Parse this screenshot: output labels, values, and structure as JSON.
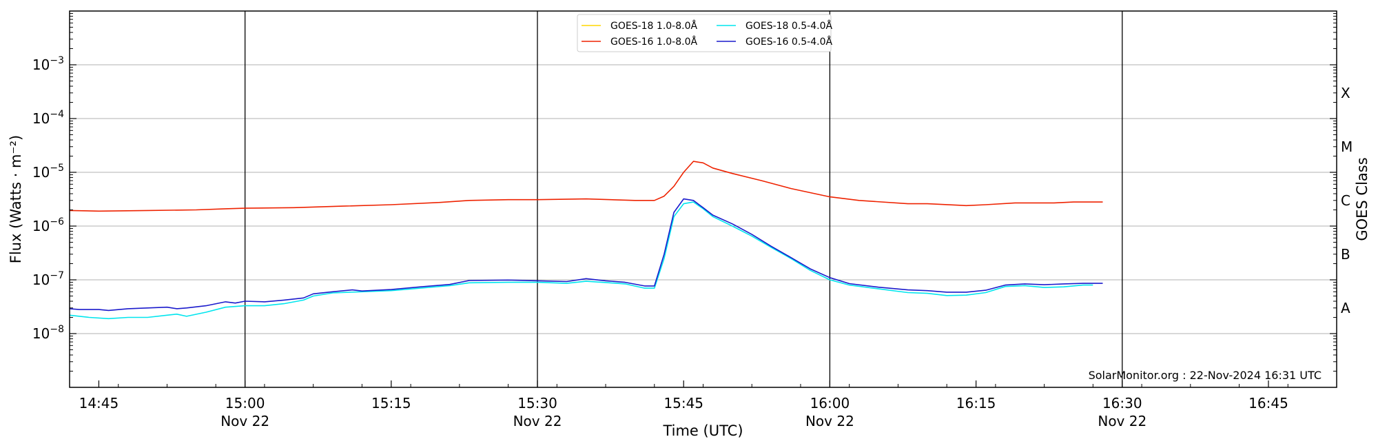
{
  "chart_data": {
    "type": "line",
    "xlabel": "Time (UTC)",
    "ylabel": "Flux (Watts · m⁻²)",
    "y2label": "GOES Class",
    "credit": "SolarMonitor.org : 22-Nov-2024 16:31 UTC",
    "y_scale": "log",
    "xlim": [
      "14:42",
      "16:52"
    ],
    "ylim": [
      1e-09,
      0.01
    ],
    "grid": "horizontal gridlines at decades",
    "legend_position": "top-center",
    "x_ticks": [
      {
        "t": "14:45",
        "label": "14:45",
        "sub": ""
      },
      {
        "t": "15:00",
        "label": "15:00",
        "sub": "Nov 22"
      },
      {
        "t": "15:15",
        "label": "15:15",
        "sub": ""
      },
      {
        "t": "15:30",
        "label": "15:30",
        "sub": "Nov 22"
      },
      {
        "t": "15:45",
        "label": "15:45",
        "sub": ""
      },
      {
        "t": "16:00",
        "label": "16:00",
        "sub": "Nov 22"
      },
      {
        "t": "16:15",
        "label": "16:15",
        "sub": ""
      },
      {
        "t": "16:30",
        "label": "16:30",
        "sub": "Nov 22"
      },
      {
        "t": "16:45",
        "label": "16:45",
        "sub": ""
      }
    ],
    "day_lines": [
      "15:00",
      "15:30",
      "16:00",
      "16:30"
    ],
    "y_ticks": [
      {
        "value": 1e-08,
        "base": "10",
        "exp": "−8"
      },
      {
        "value": 1e-07,
        "base": "10",
        "exp": "−7"
      },
      {
        "value": 1e-06,
        "base": "10",
        "exp": "−6"
      },
      {
        "value": 1e-05,
        "base": "10",
        "exp": "−5"
      },
      {
        "value": 0.0001,
        "base": "10",
        "exp": "−4"
      },
      {
        "value": 0.001,
        "base": "10",
        "exp": "−3"
      }
    ],
    "goes_classes": [
      {
        "label": "A",
        "value": 3e-08
      },
      {
        "label": "B",
        "value": 3e-07
      },
      {
        "label": "C",
        "value": 3e-06
      },
      {
        "label": "M",
        "value": 3e-05
      },
      {
        "label": "X",
        "value": 0.0003
      }
    ],
    "series": [
      {
        "name": "GOES-18 1.0-8.0Å",
        "color": "#ffd700",
        "points": []
      },
      {
        "name": "GOES-18 0.5-4.0Å",
        "color": "#00e5ee",
        "points": [
          [
            "14:42",
            2.2e-08
          ],
          [
            "14:44",
            2e-08
          ],
          [
            "14:46",
            1.9e-08
          ],
          [
            "14:48",
            2e-08
          ],
          [
            "14:50",
            2e-08
          ],
          [
            "14:52",
            2.2e-08
          ],
          [
            "14:53",
            2.3e-08
          ],
          [
            "14:54",
            2.1e-08
          ],
          [
            "14:56",
            2.5e-08
          ],
          [
            "14:58",
            3.1e-08
          ],
          [
            "15:00",
            3.3e-08
          ],
          [
            "15:02",
            3.3e-08
          ],
          [
            "15:04",
            3.6e-08
          ],
          [
            "15:06",
            4.2e-08
          ],
          [
            "15:07",
            5e-08
          ],
          [
            "15:09",
            5.7e-08
          ],
          [
            "15:12",
            6e-08
          ],
          [
            "15:15",
            6.3e-08
          ],
          [
            "15:18",
            7e-08
          ],
          [
            "15:21",
            7.8e-08
          ],
          [
            "15:23",
            8.8e-08
          ],
          [
            "15:27",
            9e-08
          ],
          [
            "15:30",
            9e-08
          ],
          [
            "15:33",
            8.6e-08
          ],
          [
            "15:35",
            9.4e-08
          ],
          [
            "15:37",
            8.9e-08
          ],
          [
            "15:39",
            8.4e-08
          ],
          [
            "15:41",
            7e-08
          ],
          [
            "15:42",
            7e-08
          ],
          [
            "15:43",
            2.5e-07
          ],
          [
            "15:44",
            1.5e-06
          ],
          [
            "15:45",
            2.6e-06
          ],
          [
            "15:46",
            2.8e-06
          ],
          [
            "15:47",
            2.1e-06
          ],
          [
            "15:48",
            1.5e-06
          ],
          [
            "15:50",
            1e-06
          ],
          [
            "15:52",
            6.5e-07
          ],
          [
            "15:54",
            4e-07
          ],
          [
            "15:56",
            2.5e-07
          ],
          [
            "15:58",
            1.5e-07
          ],
          [
            "16:00",
            1e-07
          ],
          [
            "16:02",
            8e-08
          ],
          [
            "16:05",
            6.8e-08
          ],
          [
            "16:08",
            5.8e-08
          ],
          [
            "16:10",
            5.6e-08
          ],
          [
            "16:12",
            5.1e-08
          ],
          [
            "16:14",
            5.2e-08
          ],
          [
            "16:16",
            5.8e-08
          ],
          [
            "16:18",
            7.5e-08
          ],
          [
            "16:20",
            7.8e-08
          ],
          [
            "16:22",
            7.2e-08
          ],
          [
            "16:24",
            7.4e-08
          ],
          [
            "16:26",
            8e-08
          ],
          [
            "16:27",
            8e-08
          ]
        ]
      },
      {
        "name": "GOES-16 1.0-8.0Å",
        "color": "#ee2200",
        "points": [
          [
            "14:42",
            1.95e-06
          ],
          [
            "14:45",
            1.9e-06
          ],
          [
            "14:50",
            1.95e-06
          ],
          [
            "14:55",
            2e-06
          ],
          [
            "14:58",
            2.1e-06
          ],
          [
            "15:00",
            2.15e-06
          ],
          [
            "15:05",
            2.2e-06
          ],
          [
            "15:10",
            2.35e-06
          ],
          [
            "15:15",
            2.5e-06
          ],
          [
            "15:20",
            2.75e-06
          ],
          [
            "15:23",
            3e-06
          ],
          [
            "15:27",
            3.1e-06
          ],
          [
            "15:30",
            3.1e-06
          ],
          [
            "15:35",
            3.2e-06
          ],
          [
            "15:40",
            3e-06
          ],
          [
            "15:42",
            3e-06
          ],
          [
            "15:43",
            3.6e-06
          ],
          [
            "15:44",
            5.5e-06
          ],
          [
            "15:45",
            1e-05
          ],
          [
            "15:46",
            1.6e-05
          ],
          [
            "15:47",
            1.5e-05
          ],
          [
            "15:48",
            1.2e-05
          ],
          [
            "15:50",
            9.5e-06
          ],
          [
            "15:53",
            7e-06
          ],
          [
            "15:56",
            5e-06
          ],
          [
            "16:00",
            3.5e-06
          ],
          [
            "16:03",
            3e-06
          ],
          [
            "16:08",
            2.6e-06
          ],
          [
            "16:10",
            2.6e-06
          ],
          [
            "16:14",
            2.4e-06
          ],
          [
            "16:16",
            2.5e-06
          ],
          [
            "16:19",
            2.7e-06
          ],
          [
            "16:23",
            2.7e-06
          ],
          [
            "16:25",
            2.8e-06
          ],
          [
            "16:28",
            2.8e-06
          ]
        ]
      },
      {
        "name": "GOES-16 0.5-4.0Å",
        "color": "#1a1acc",
        "points": [
          [
            "14:42",
            2.9e-08
          ],
          [
            "14:43",
            2.8e-08
          ],
          [
            "14:45",
            2.8e-08
          ],
          [
            "14:46",
            2.7e-08
          ],
          [
            "14:48",
            2.9e-08
          ],
          [
            "14:50",
            3e-08
          ],
          [
            "14:52",
            3.1e-08
          ],
          [
            "14:53",
            2.9e-08
          ],
          [
            "14:54",
            3e-08
          ],
          [
            "14:56",
            3.3e-08
          ],
          [
            "14:58",
            3.9e-08
          ],
          [
            "14:59",
            3.7e-08
          ],
          [
            "15:00",
            4e-08
          ],
          [
            "15:02",
            3.9e-08
          ],
          [
            "15:04",
            4.2e-08
          ],
          [
            "15:06",
            4.6e-08
          ],
          [
            "15:07",
            5.5e-08
          ],
          [
            "15:09",
            6e-08
          ],
          [
            "15:11",
            6.5e-08
          ],
          [
            "15:12",
            6.2e-08
          ],
          [
            "15:15",
            6.6e-08
          ],
          [
            "15:18",
            7.4e-08
          ],
          [
            "15:21",
            8.2e-08
          ],
          [
            "15:23",
            9.7e-08
          ],
          [
            "15:27",
            9.9e-08
          ],
          [
            "15:30",
            9.6e-08
          ],
          [
            "15:33",
            9.3e-08
          ],
          [
            "15:35",
            1.05e-07
          ],
          [
            "15:37",
            9.6e-08
          ],
          [
            "15:39",
            9e-08
          ],
          [
            "15:41",
            7.7e-08
          ],
          [
            "15:42",
            7.7e-08
          ],
          [
            "15:43",
            3e-07
          ],
          [
            "15:44",
            1.8e-06
          ],
          [
            "15:45",
            3.2e-06
          ],
          [
            "15:46",
            3e-06
          ],
          [
            "15:47",
            2.2e-06
          ],
          [
            "15:48",
            1.6e-06
          ],
          [
            "15:50",
            1.1e-06
          ],
          [
            "15:52",
            7e-07
          ],
          [
            "15:54",
            4.2e-07
          ],
          [
            "15:56",
            2.6e-07
          ],
          [
            "15:58",
            1.6e-07
          ],
          [
            "16:00",
            1.1e-07
          ],
          [
            "16:02",
            8.5e-08
          ],
          [
            "16:05",
            7.3e-08
          ],
          [
            "16:08",
            6.5e-08
          ],
          [
            "16:10",
            6.3e-08
          ],
          [
            "16:12",
            5.9e-08
          ],
          [
            "16:14",
            5.9e-08
          ],
          [
            "16:16",
            6.4e-08
          ],
          [
            "16:18",
            8e-08
          ],
          [
            "16:20",
            8.4e-08
          ],
          [
            "16:22",
            8.1e-08
          ],
          [
            "16:24",
            8.4e-08
          ],
          [
            "16:26",
            8.6e-08
          ],
          [
            "16:28",
            8.6e-08
          ]
        ]
      }
    ]
  }
}
